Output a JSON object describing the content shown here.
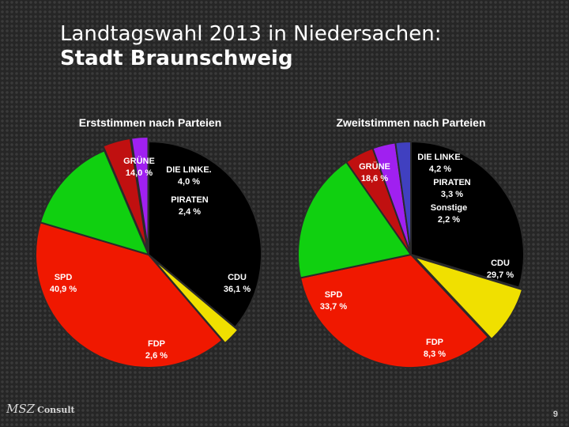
{
  "title": {
    "line1": "Landtagswahl 2013 in Niedersachen:",
    "line2": "Stadt Braunschweig"
  },
  "chart_data": [
    {
      "type": "pie",
      "title": "Erststimmen nach Parteien",
      "slices": [
        {
          "party": "CDU",
          "value": 36.1,
          "label": "36,1 %",
          "color": "#000000",
          "text_color": "#ffffff"
        },
        {
          "party": "FDP",
          "value": 2.6,
          "label": "2,6 %",
          "color": "#f0e000",
          "text_color": "#ffffff"
        },
        {
          "party": "SPD",
          "value": 40.9,
          "label": "40,9 %",
          "color": "#f01800",
          "text_color": "#ffffff"
        },
        {
          "party": "GRÜNE",
          "value": 14.0,
          "label": "14,0 %",
          "color": "#10d010",
          "text_color": "#ffffff"
        },
        {
          "party": "DIE LINKE.",
          "value": 4.0,
          "label": "4,0 %",
          "color": "#c01010",
          "text_color": "#ffffff"
        },
        {
          "party": "PIRATEN",
          "value": 2.4,
          "label": "2,4 %",
          "color": "#a020f0",
          "text_color": "#ffffff"
        }
      ]
    },
    {
      "type": "pie",
      "title": "Zweitstimmen nach Parteien",
      "slices": [
        {
          "party": "CDU",
          "value": 29.7,
          "label": "29,7 %",
          "color": "#000000",
          "text_color": "#ffffff"
        },
        {
          "party": "FDP",
          "value": 8.3,
          "label": "8,3 %",
          "color": "#f0e000",
          "text_color": "#ffffff"
        },
        {
          "party": "SPD",
          "value": 33.7,
          "label": "33,7 %",
          "color": "#f01800",
          "text_color": "#ffffff"
        },
        {
          "party": "GRÜNE",
          "value": 18.6,
          "label": "18,6 %",
          "color": "#10d010",
          "text_color": "#ffffff"
        },
        {
          "party": "DIE LINKE.",
          "value": 4.2,
          "label": "4,2 %",
          "color": "#c01010",
          "text_color": "#ffffff"
        },
        {
          "party": "PIRATEN",
          "value": 3.3,
          "label": "3,3 %",
          "color": "#a020f0",
          "text_color": "#ffffff"
        },
        {
          "party": "Sonstige",
          "value": 2.2,
          "label": "2,2 %",
          "color": "#4040c0",
          "text_color": "#ffffff"
        }
      ]
    }
  ],
  "footer": {
    "logo_text": "MSZ",
    "logo_suffix": "Consult",
    "page_number": "9"
  }
}
